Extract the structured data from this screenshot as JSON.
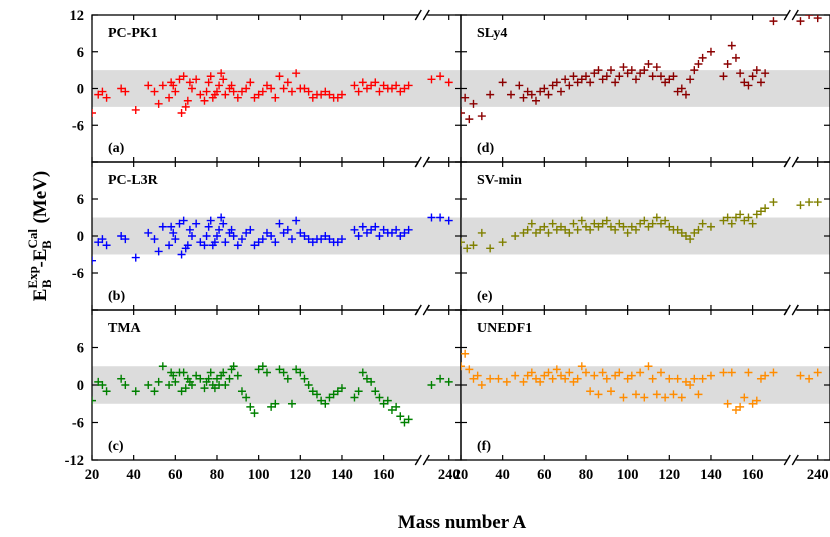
{
  "figure": {
    "ylabel_main": "E",
    "ylabel_sub1": "B",
    "ylabel_sup1": "Exp",
    "ylabel_dash": "-E",
    "ylabel_sub2": "B",
    "ylabel_sup2": "Cal",
    "ylabel_unit": " (MeV)",
    "xlabel": "Mass number A",
    "band_color": "#dcdcdc"
  },
  "chart_data": [
    {
      "type": "scatter",
      "panel": "PC-PK1",
      "letter": "(a)",
      "color": "#ff0000",
      "ylim": [
        -12,
        12
      ],
      "yticks": [
        "12",
        "6",
        "0",
        "-6",
        ""
      ],
      "x": [
        20,
        23,
        25,
        27,
        34,
        36,
        41,
        47,
        50,
        52,
        54,
        57,
        58,
        59,
        60,
        62,
        63,
        64,
        65,
        66,
        67,
        68,
        70,
        72,
        74,
        75,
        76,
        77,
        78,
        79,
        80,
        81,
        82,
        83,
        84,
        86,
        87,
        88,
        90,
        92,
        94,
        96,
        98,
        100,
        102,
        104,
        106,
        108,
        110,
        112,
        114,
        116,
        118,
        120,
        122,
        124,
        126,
        128,
        130,
        132,
        134,
        136,
        138,
        140,
        146,
        148,
        150,
        152,
        154,
        156,
        158,
        160,
        162,
        164,
        166,
        168,
        170,
        172,
        236,
        238,
        240
      ],
      "y": [
        -4,
        -1,
        -0.5,
        -1.5,
        0,
        -0.5,
        -3.5,
        0.5,
        -0.5,
        -2.5,
        0.5,
        -1.5,
        1,
        0.5,
        -0.5,
        1.5,
        -4,
        2,
        -3,
        -2,
        1,
        0,
        1.5,
        -1,
        -2,
        -0.5,
        1,
        2,
        -1.5,
        -1,
        -0.5,
        0.5,
        2.5,
        1.5,
        -1,
        0,
        0.5,
        -0.5,
        -1.5,
        -0.5,
        0,
        1,
        -1.5,
        -1,
        -0.5,
        0.5,
        0,
        -1.5,
        2,
        0,
        1,
        -0.5,
        2.5,
        0,
        0,
        -0.5,
        -1.5,
        -1,
        -1,
        -0.5,
        -1,
        -1.5,
        -1.5,
        -1,
        0.5,
        -0.5,
        1,
        0,
        0.5,
        1,
        -0.5,
        0.5,
        0,
        0,
        0.5,
        -0.5,
        0,
        0.5,
        1.5,
        2,
        1
      ]
    },
    {
      "type": "scatter",
      "panel": "PC-L3R",
      "letter": "(b)",
      "color": "#0000ff",
      "ylim": [
        -12,
        12
      ],
      "yticks": [
        "",
        "6",
        "0",
        "-6",
        ""
      ],
      "x": [
        20,
        23,
        25,
        27,
        34,
        36,
        41,
        47,
        50,
        52,
        54,
        57,
        58,
        59,
        60,
        62,
        63,
        64,
        65,
        66,
        67,
        68,
        70,
        72,
        74,
        75,
        76,
        77,
        78,
        79,
        80,
        81,
        82,
        83,
        84,
        86,
        87,
        88,
        90,
        92,
        94,
        96,
        98,
        100,
        102,
        104,
        106,
        108,
        110,
        112,
        114,
        116,
        118,
        120,
        122,
        124,
        126,
        128,
        130,
        132,
        134,
        136,
        138,
        140,
        146,
        148,
        150,
        152,
        154,
        156,
        158,
        160,
        162,
        164,
        166,
        168,
        170,
        172,
        236,
        238,
        240
      ],
      "y": [
        -4,
        -1,
        -0.5,
        -1.5,
        0,
        -0.5,
        -3.5,
        0.5,
        -0.5,
        -2.5,
        1.5,
        -1.5,
        1.5,
        0.5,
        -0.5,
        2,
        -3,
        2.5,
        -2,
        -1.5,
        1,
        0,
        2,
        -1,
        -1.5,
        0,
        1.5,
        2.5,
        -1.5,
        -1,
        0,
        1,
        3,
        2,
        -1,
        0.5,
        1,
        0,
        -1.5,
        -0.5,
        0.5,
        1,
        -1.5,
        -1,
        -0.5,
        0.5,
        0,
        -1,
        2,
        0.5,
        1,
        -0.5,
        2.5,
        0.5,
        0,
        -0.5,
        -1,
        -0.5,
        -0.5,
        0,
        -0.5,
        -1,
        -1,
        -0.5,
        1,
        0,
        1.5,
        0.5,
        1,
        1.5,
        0,
        1,
        0.5,
        0.5,
        1,
        0,
        0.5,
        1,
        3,
        3,
        2.5
      ]
    },
    {
      "type": "scatter",
      "panel": "TMA",
      "letter": "(c)",
      "color": "#008000",
      "ylim": [
        -12,
        12
      ],
      "yticks": [
        "",
        "6",
        "0",
        "-6",
        "-12"
      ],
      "x": [
        20,
        23,
        25,
        27,
        34,
        36,
        41,
        47,
        50,
        52,
        54,
        57,
        58,
        59,
        60,
        62,
        63,
        64,
        65,
        66,
        67,
        68,
        70,
        72,
        74,
        75,
        76,
        77,
        78,
        79,
        80,
        81,
        82,
        83,
        84,
        86,
        87,
        88,
        90,
        92,
        94,
        96,
        98,
        100,
        102,
        104,
        106,
        108,
        110,
        112,
        114,
        116,
        118,
        120,
        122,
        124,
        126,
        128,
        130,
        132,
        134,
        136,
        138,
        140,
        146,
        148,
        150,
        152,
        154,
        156,
        158,
        160,
        162,
        164,
        166,
        168,
        170,
        172,
        236,
        238,
        240
      ],
      "y": [
        -2.5,
        0.5,
        0,
        -1,
        1,
        0,
        -1,
        0,
        -1,
        0.5,
        3,
        0,
        2,
        1.5,
        0.5,
        2,
        -1,
        2,
        -0.5,
        1,
        0.5,
        0,
        1.5,
        1,
        -0.5,
        0.5,
        1,
        2,
        0,
        -0.5,
        1,
        0,
        1.5,
        2,
        0,
        1,
        2.5,
        3,
        1.5,
        -1,
        -2,
        -3.5,
        -4.5,
        2.5,
        3,
        2,
        -3.5,
        -3,
        2.5,
        2,
        1,
        -3,
        2.5,
        2,
        1,
        0,
        -1,
        -1.5,
        -2.5,
        -3,
        -2,
        -1.5,
        -1,
        -0.5,
        -2,
        -1,
        2,
        1,
        0.5,
        -1,
        -2,
        -3,
        -2.5,
        -4,
        -3.5,
        -5,
        -6,
        -5.5,
        0,
        1,
        0.5
      ]
    },
    {
      "type": "scatter",
      "panel": "SLy4",
      "letter": "(d)",
      "color": "#8b0000",
      "ylim": [
        -12,
        12
      ],
      "yticks": [
        "12",
        "6",
        "0",
        "-6",
        ""
      ],
      "x": [
        20,
        22,
        24,
        26,
        30,
        34,
        40,
        44,
        48,
        50,
        52,
        54,
        56,
        58,
        60,
        62,
        64,
        66,
        68,
        70,
        72,
        74,
        76,
        78,
        80,
        82,
        84,
        86,
        88,
        90,
        92,
        94,
        96,
        98,
        100,
        102,
        104,
        106,
        108,
        110,
        112,
        114,
        116,
        118,
        120,
        122,
        124,
        126,
        128,
        130,
        132,
        134,
        136,
        140,
        146,
        148,
        150,
        152,
        154,
        156,
        158,
        160,
        162,
        164,
        166,
        170,
        236,
        238,
        240
      ],
      "y": [
        -4,
        -1.5,
        -5,
        -2.5,
        -4.5,
        -1,
        1,
        -1,
        0.5,
        -1.5,
        -0.5,
        -1,
        -2,
        -0.5,
        0,
        -1,
        0.5,
        1,
        -0.5,
        1.5,
        0.5,
        2,
        1,
        1.5,
        2,
        1,
        2.5,
        3,
        1.5,
        2,
        3,
        1,
        2,
        3.5,
        2.5,
        3,
        1.5,
        2.5,
        3,
        4,
        2,
        3.5,
        2,
        1,
        1.5,
        2,
        -0.5,
        0,
        -1,
        1.5,
        3,
        4,
        5,
        6,
        2,
        4,
        7,
        5,
        2.5,
        1,
        0.5,
        2,
        3,
        1,
        2.5,
        11,
        11,
        12,
        11.5
      ]
    },
    {
      "type": "scatter",
      "panel": "SV-min",
      "letter": "(e)",
      "color": "#808000",
      "ylim": [
        -12,
        12
      ],
      "yticks": [
        "",
        "6",
        "0",
        "-6",
        ""
      ],
      "x": [
        20,
        23,
        26,
        30,
        34,
        40,
        46,
        50,
        52,
        54,
        56,
        58,
        60,
        62,
        64,
        66,
        68,
        70,
        72,
        74,
        76,
        78,
        80,
        82,
        84,
        86,
        88,
        90,
        92,
        94,
        96,
        98,
        100,
        102,
        104,
        106,
        108,
        110,
        112,
        114,
        116,
        118,
        120,
        122,
        124,
        126,
        128,
        130,
        132,
        134,
        136,
        140,
        146,
        148,
        150,
        152,
        154,
        156,
        158,
        160,
        162,
        164,
        166,
        170,
        236,
        238,
        240
      ],
      "y": [
        -1,
        -2,
        -1.5,
        0.5,
        -2,
        -1,
        0,
        0.5,
        1,
        2,
        0.5,
        1,
        1.5,
        0.5,
        2,
        1,
        1.5,
        1,
        0.5,
        2,
        1,
        2.5,
        1.5,
        1,
        2,
        1.5,
        2,
        2.5,
        1.5,
        1,
        2,
        1.5,
        0.5,
        1.5,
        1,
        2,
        2.5,
        1.5,
        2,
        3,
        2,
        2.5,
        1.5,
        1,
        1,
        0.5,
        0,
        -0.5,
        0.5,
        1,
        2,
        1.5,
        2.5,
        3,
        2,
        3,
        3.5,
        2.5,
        3,
        2,
        3.5,
        4,
        4.5,
        5.5,
        5,
        5.5,
        5.5
      ]
    },
    {
      "type": "scatter",
      "panel": "UNEDF1",
      "letter": "(f)",
      "color": "#ff8c00",
      "ylim": [
        -12,
        12
      ],
      "yticks": [
        "",
        "6",
        "0",
        "-6",
        ""
      ],
      "x": [
        20,
        22,
        24,
        26,
        28,
        30,
        34,
        38,
        42,
        46,
        50,
        52,
        54,
        56,
        58,
        60,
        62,
        64,
        66,
        68,
        70,
        72,
        74,
        76,
        78,
        80,
        82,
        84,
        86,
        88,
        90,
        92,
        94,
        96,
        98,
        100,
        102,
        104,
        106,
        108,
        110,
        112,
        114,
        116,
        118,
        120,
        122,
        124,
        126,
        128,
        130,
        132,
        134,
        136,
        140,
        146,
        148,
        150,
        152,
        154,
        156,
        158,
        160,
        162,
        164,
        166,
        170,
        236,
        238,
        240
      ],
      "y": [
        3,
        5,
        2.5,
        1,
        1.5,
        0,
        1,
        1,
        0.5,
        1.5,
        0.5,
        1.5,
        2,
        1,
        0.5,
        1.5,
        2,
        1,
        2.5,
        1.5,
        1,
        2,
        0.5,
        1,
        3,
        2,
        -1,
        1.5,
        -1.5,
        2,
        1,
        -1,
        1.5,
        2,
        -2,
        1,
        1.5,
        -1.5,
        2,
        -2,
        3,
        1,
        -1.5,
        2,
        -2,
        1,
        -1.5,
        1,
        -2,
        0.5,
        0,
        1,
        -1.5,
        1,
        1.5,
        2,
        -3,
        2,
        -4,
        -3.5,
        -2,
        2,
        -3,
        -2.5,
        1,
        1.5,
        2,
        1.5,
        1,
        2
      ]
    }
  ],
  "x_axis": {
    "ticks": [
      "20",
      "40",
      "60",
      "80",
      "100",
      "120",
      "140",
      "160",
      "240"
    ]
  }
}
